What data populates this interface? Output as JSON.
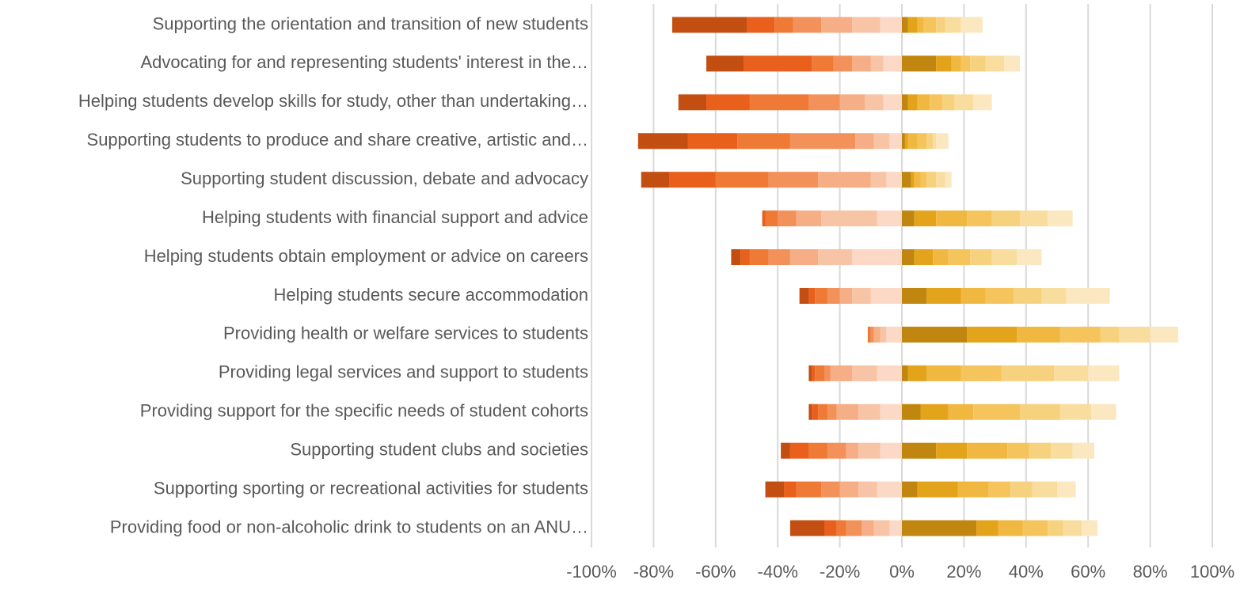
{
  "chart_data": {
    "type": "diverging-bar",
    "categories": [
      "Supporting the orientation and transition of new students",
      "Advocating for and representing students' interest in the…",
      "Helping students develop skills for study, other than undertaking…",
      "Supporting students to produce and share creative, artistic and…",
      "Supporting student discussion, debate and advocacy",
      "Helping students with financial support and advice",
      "Helping students obtain employment or advice on careers",
      "Helping students secure accommodation",
      "Providing health or welfare services to students",
      "Providing legal services and support to students",
      "Providing support for the specific needs of student cohorts",
      "Supporting student clubs and societies",
      "Supporting sporting or recreational activities for students",
      "Providing food or non-alcoholic drink to students on an ANU…"
    ],
    "series": [
      {
        "color": "#fbd9c6",
        "values": [
          -7,
          -6,
          -6,
          -4,
          -5,
          -8,
          -16,
          -10,
          -5,
          -8,
          -7,
          -7,
          -8,
          -4
        ]
      },
      {
        "color": "#f8c4a6",
        "values": [
          -9,
          -4,
          -6,
          -5,
          -5,
          -18,
          -11,
          -6,
          -2,
          -8,
          -7,
          -7,
          -6,
          -5
        ]
      },
      {
        "color": "#f5ae85",
        "values": [
          -10,
          -6,
          -8,
          -6,
          -17,
          -8,
          -9,
          -4,
          -2,
          -7,
          -7,
          -4,
          -6,
          -4
        ]
      },
      {
        "color": "#f2925a",
        "values": [
          -9,
          -6,
          -10,
          -21,
          -16,
          -6,
          -7,
          -4,
          -1,
          -2,
          -3,
          -6,
          -6,
          -5
        ]
      },
      {
        "color": "#ee7a35",
        "values": [
          -6,
          -7,
          -19,
          -17,
          -17,
          -4,
          -6,
          -4,
          -1,
          -3,
          -3,
          -6,
          -8,
          -3
        ]
      },
      {
        "color": "#e8601c",
        "values": [
          -9,
          -22,
          -14,
          -16,
          -15,
          -1,
          -3,
          -2,
          0,
          -1,
          -2,
          -6,
          -4,
          -4
        ]
      },
      {
        "color": "#c24e12",
        "values": [
          -24,
          -12,
          -9,
          -16,
          -9,
          0,
          -3,
          -3,
          0,
          -1,
          -1,
          -3,
          -6,
          -11
        ]
      },
      {
        "color": "#c0860f",
        "values": [
          2,
          11,
          2,
          1,
          3,
          4,
          4,
          8,
          21,
          2,
          6,
          11,
          5,
          24
        ]
      },
      {
        "color": "#e3a31b",
        "values": [
          3,
          5,
          3,
          1,
          1,
          7,
          6,
          11,
          16,
          6,
          9,
          10,
          13,
          7
        ]
      },
      {
        "color": "#f0b840",
        "values": [
          2,
          3,
          4,
          3,
          2,
          10,
          5,
          8,
          14,
          11,
          8,
          13,
          10,
          8
        ]
      },
      {
        "color": "#f5c45c",
        "values": [
          4,
          3,
          4,
          3,
          2,
          8,
          7,
          9,
          13,
          13,
          15,
          7,
          7,
          8
        ]
      },
      {
        "color": "#f7d27e",
        "values": [
          3,
          5,
          4,
          2,
          3,
          9,
          7,
          9,
          6,
          17,
          13,
          7,
          7,
          5
        ]
      },
      {
        "color": "#f9dd9f",
        "values": [
          5,
          6,
          6,
          1,
          3,
          9,
          8,
          8,
          10,
          11,
          10,
          7,
          8,
          6
        ]
      },
      {
        "color": "#fbe8c0",
        "values": [
          7,
          5,
          6,
          4,
          2,
          8,
          8,
          14,
          9,
          10,
          8,
          7,
          6,
          5
        ]
      }
    ],
    "xlim": [
      -100,
      100
    ],
    "xticks": [
      {
        "value": -100,
        "label": "-100%"
      },
      {
        "value": -80,
        "label": "-80%"
      },
      {
        "value": -60,
        "label": "-60%"
      },
      {
        "value": -40,
        "label": "-40%"
      },
      {
        "value": -20,
        "label": "-20%"
      },
      {
        "value": 0,
        "label": "0%"
      },
      {
        "value": 20,
        "label": "20%"
      },
      {
        "value": 40,
        "label": "40%"
      },
      {
        "value": 60,
        "label": "60%"
      },
      {
        "value": 80,
        "label": "80%"
      },
      {
        "value": 100,
        "label": "100%"
      }
    ],
    "grid": true
  }
}
